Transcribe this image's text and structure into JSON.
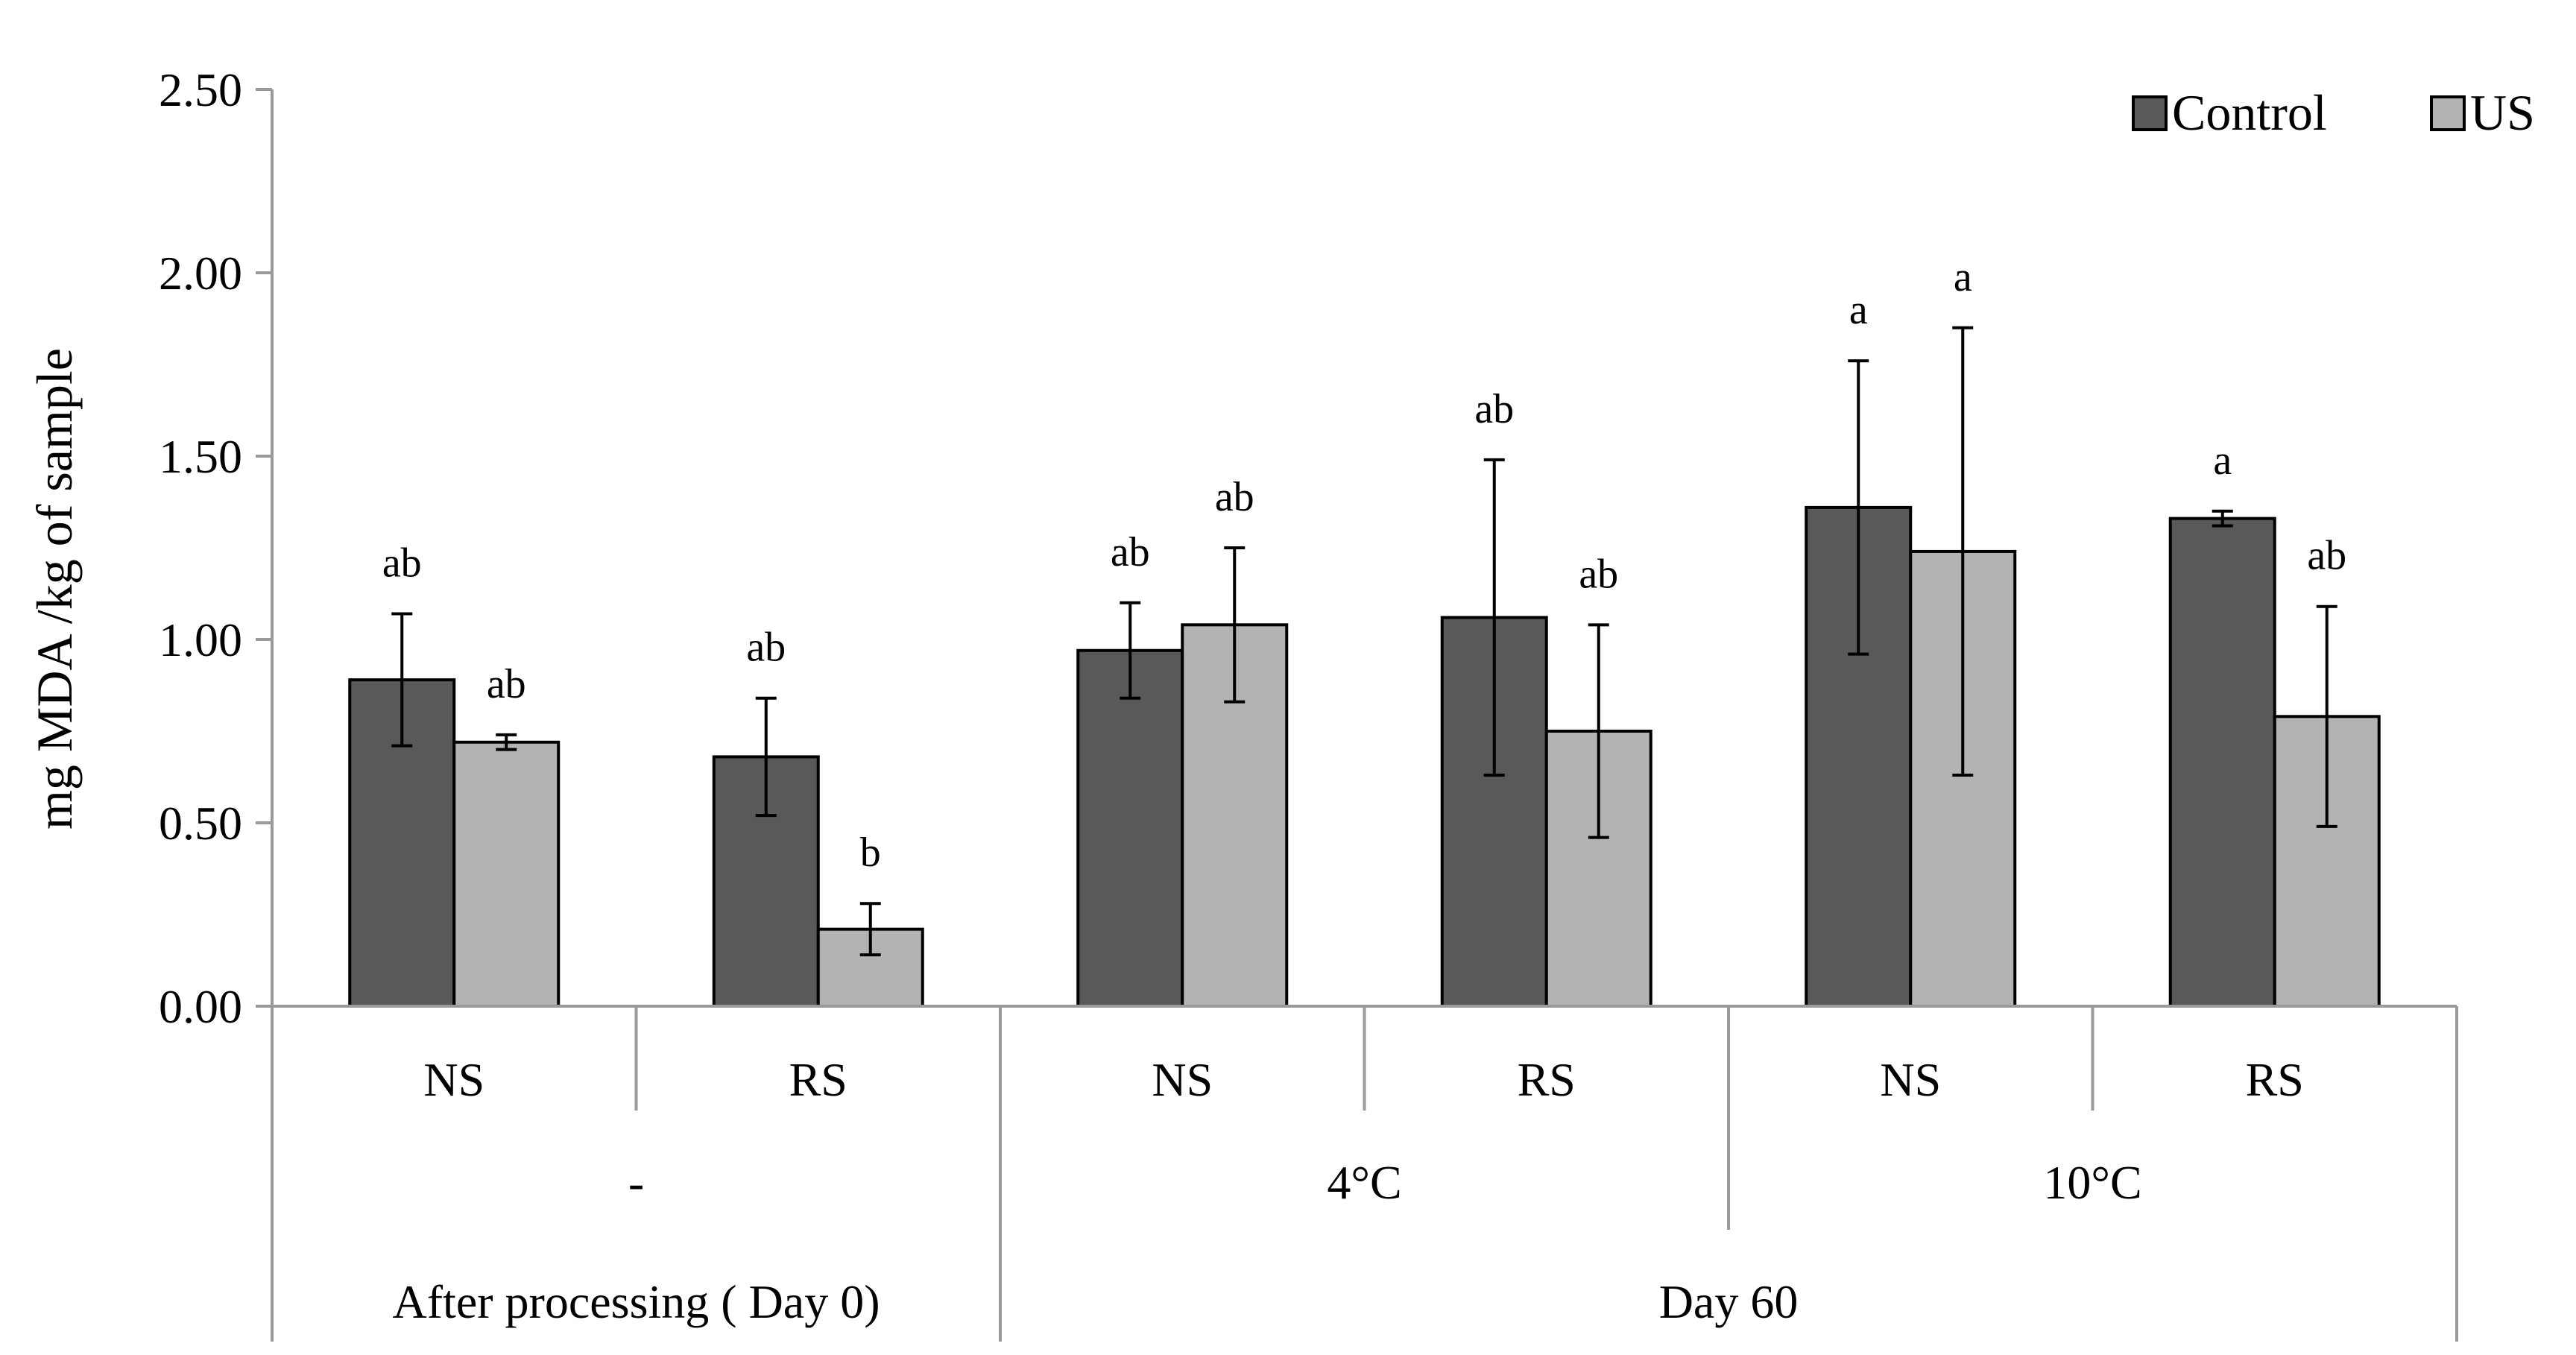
{
  "chart_data": {
    "type": "bar",
    "ylabel": "mg MDA /kg of sample",
    "ylim": [
      0,
      2.5
    ],
    "yticks": [
      "0.00",
      "0.50",
      "1.00",
      "1.50",
      "2.00",
      "2.50"
    ],
    "grid": false,
    "legend_position": "top-right",
    "categories": [
      "NS",
      "RS",
      "NS",
      "RS",
      "NS",
      "RS"
    ],
    "level2": [
      "-",
      "4°C",
      "10°C"
    ],
    "level3": [
      "After processing ( Day 0)",
      "Day 60"
    ],
    "series": [
      {
        "name": "Control",
        "color": "#595959",
        "values": [
          0.89,
          0.68,
          0.97,
          1.06,
          1.36,
          1.33
        ],
        "errors": [
          0.18,
          0.16,
          0.13,
          0.43,
          0.4,
          0.02
        ],
        "labels": [
          "ab",
          "ab",
          "ab",
          "ab",
          "a",
          "a"
        ]
      },
      {
        "name": "US",
        "color": "#b3b3b3",
        "values": [
          0.72,
          0.21,
          1.04,
          0.75,
          1.24,
          0.79
        ],
        "errors": [
          0.02,
          0.07,
          0.21,
          0.29,
          0.61,
          0.3
        ],
        "labels": [
          "ab",
          "b",
          "ab",
          "ab",
          "a",
          "ab"
        ]
      }
    ]
  }
}
